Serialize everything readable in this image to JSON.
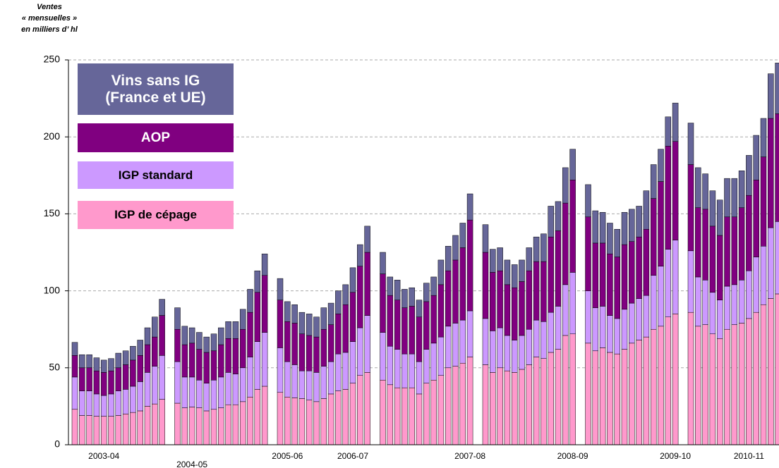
{
  "chart_data": {
    "type": "stacked_bar",
    "y_label": [
      "Ventes",
      "« mensuelles »",
      "en milliers d’ hl"
    ],
    "categories": [
      null,
      null,
      null,
      null,
      "2003-04",
      null,
      null,
      null,
      null,
      null,
      null,
      null,
      null,
      null,
      null,
      "2004-05",
      null,
      null,
      null,
      null,
      null,
      null,
      null,
      null,
      null,
      null,
      null,
      "2005-06",
      null,
      null,
      null,
      null,
      null,
      null,
      null,
      null,
      "2006-07",
      null,
      null,
      null,
      null,
      null,
      null,
      null,
      null,
      null,
      null,
      null,
      null,
      null,
      null,
      "2007-08",
      null,
      null,
      null,
      null,
      null,
      null,
      null,
      null,
      null,
      null,
      null,
      null,
      "2008-09",
      null,
      null,
      null,
      null,
      null,
      null,
      null,
      null,
      null,
      null,
      null,
      null,
      "2009-10",
      null,
      null,
      null,
      null,
      null,
      null,
      null,
      null,
      "2010-11",
      null,
      null,
      null,
      null
    ],
    "series": [
      {
        "name": "IGP de cépage",
        "color": "#ff99cc",
        "values": [
          23,
          19,
          19,
          18.5,
          18.5,
          18.5,
          19,
          20,
          21,
          22,
          25,
          26.5,
          29.5,
          27,
          24,
          24.5,
          24,
          22,
          23,
          24,
          26,
          26,
          28,
          31,
          36,
          38,
          34,
          31,
          30.5,
          30,
          29,
          28,
          30,
          33,
          35,
          36,
          40,
          45,
          47,
          42,
          39,
          37,
          37,
          37,
          33,
          40,
          42,
          45,
          50,
          51,
          53,
          57,
          52,
          47,
          50,
          48,
          47,
          49,
          52,
          57,
          56,
          60,
          62,
          71,
          72,
          66,
          61,
          63,
          60,
          59,
          62,
          66,
          68,
          70,
          75,
          77,
          83,
          85,
          86,
          77,
          78,
          72,
          69,
          75,
          78,
          79,
          82,
          86,
          91,
          95,
          98
        ]
      },
      {
        "name": "IGP standard",
        "color": "#cc99ff",
        "values": [
          21,
          16,
          16,
          14.5,
          13.5,
          14.5,
          16,
          16,
          17,
          19,
          22,
          24.5,
          28.5,
          27,
          20,
          19.5,
          18,
          18,
          19,
          20,
          21,
          20,
          22,
          26,
          31,
          35,
          29,
          23,
          21.5,
          18,
          19,
          19,
          21,
          21,
          24,
          24,
          27,
          31,
          37,
          31,
          25,
          25,
          22,
          22,
          21,
          22,
          24,
          25,
          27,
          28,
          28,
          30,
          30,
          27,
          26,
          23,
          21,
          22,
          23,
          24,
          24,
          26,
          28,
          33,
          40,
          34,
          28,
          27,
          24,
          23,
          26,
          26,
          27,
          27,
          35,
          39,
          44,
          48,
          40,
          32,
          29,
          27,
          25,
          28,
          26,
          28,
          31,
          36,
          38,
          46,
          47
        ]
      },
      {
        "name": "AOP",
        "color": "#800080",
        "values": [
          14,
          15,
          15,
          15,
          15,
          15,
          15,
          16,
          17,
          17,
          18,
          19,
          26,
          21,
          21,
          22,
          20,
          20,
          19,
          21,
          22,
          23,
          25,
          29,
          32,
          37,
          31,
          26,
          27,
          24,
          23,
          23,
          24,
          24,
          26,
          31,
          32,
          40,
          41,
          38,
          33,
          32,
          30,
          31,
          29,
          31,
          31,
          34,
          36,
          41,
          47,
          59,
          43,
          38,
          37,
          33,
          34,
          35,
          38,
          38,
          39,
          49,
          49,
          53,
          60,
          48,
          42,
          41,
          40,
          40,
          42,
          40,
          40,
          43,
          50,
          55,
          67,
          64,
          56,
          45,
          46,
          43,
          42,
          45,
          44,
          47,
          49,
          50,
          58,
          71,
          70
        ]
      },
      {
        "name": "Vins sans IG (France et UE)",
        "color": "#666699",
        "values": [
          8.5,
          8.5,
          8.5,
          8.5,
          8,
          8,
          9.5,
          9,
          9,
          10,
          11,
          13,
          10.5,
          14,
          12,
          10,
          11,
          10,
          11,
          11,
          11,
          11,
          13,
          15,
          14,
          14,
          14,
          13,
          12,
          14,
          14,
          13,
          14,
          14,
          15,
          13,
          16,
          14,
          17,
          14,
          12,
          13,
          12,
          12,
          11,
          12,
          12,
          16,
          16,
          16,
          16,
          17,
          18,
          15,
          15,
          16,
          15,
          14,
          15,
          16,
          18,
          20,
          19,
          23,
          20,
          21,
          21,
          20,
          20,
          18,
          21,
          21,
          20,
          25,
          22,
          21,
          19,
          25,
          27,
          26,
          23,
          23,
          23,
          25,
          25,
          24,
          26,
          29,
          25,
          29,
          33
        ]
      }
    ],
    "ylim": [
      0,
      250
    ],
    "yticks": [
      0,
      50,
      100,
      150,
      200,
      250
    ],
    "grid": true
  }
}
